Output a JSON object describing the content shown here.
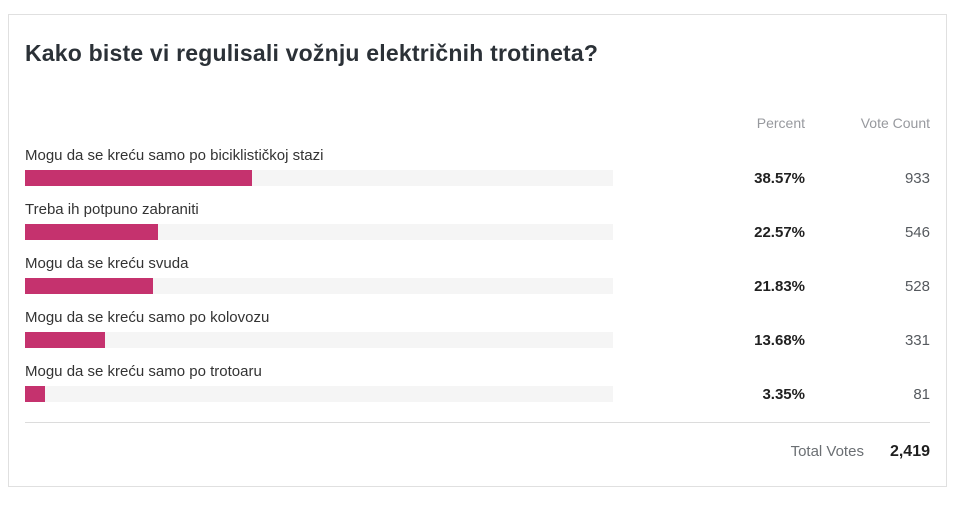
{
  "poll": {
    "title": "Kako biste vi regulisali vožnju električnih trotineta?",
    "columns": {
      "percent": "Percent",
      "vote_count": "Vote Count"
    },
    "options": [
      {
        "label": "Mogu da se kreću samo po biciklističkoj stazi",
        "percent": "38.57%",
        "votes": "933"
      },
      {
        "label": "Treba ih potpuno zabraniti",
        "percent": "22.57%",
        "votes": "546"
      },
      {
        "label": "Mogu da se kreću svuda",
        "percent": "21.83%",
        "votes": "528"
      },
      {
        "label": "Mogu da se kreću samo po kolovozu",
        "percent": "13.68%",
        "votes": "331"
      },
      {
        "label": "Mogu da se kreću samo po trotoaru",
        "percent": "3.35%",
        "votes": "81"
      }
    ],
    "footer": {
      "total_label": "Total Votes",
      "total_value": "2,419"
    },
    "colors": {
      "bar_fill": "#c5326e",
      "bar_track": "#f5f5f5"
    }
  },
  "chart_data": {
    "type": "bar",
    "orientation": "horizontal",
    "title": "Kako biste vi regulisali vožnju električnih trotineta?",
    "categories": [
      "Mogu da se kreću samo po biciklističkoj stazi",
      "Treba ih potpuno zabraniti",
      "Mogu da se kreću svuda",
      "Mogu da se kreću samo po kolovozu",
      "Mogu da se kreću samo po trotoaru"
    ],
    "series": [
      {
        "name": "Percent",
        "values": [
          38.57,
          22.57,
          21.83,
          13.68,
          3.35
        ]
      },
      {
        "name": "Vote Count",
        "values": [
          933,
          546,
          528,
          331,
          81
        ]
      }
    ],
    "total_votes": 2419,
    "xlabel": "",
    "ylabel": "",
    "xlim": [
      0,
      100
    ],
    "grid": false,
    "legend_position": "none",
    "bar_color": "#c5326e"
  }
}
